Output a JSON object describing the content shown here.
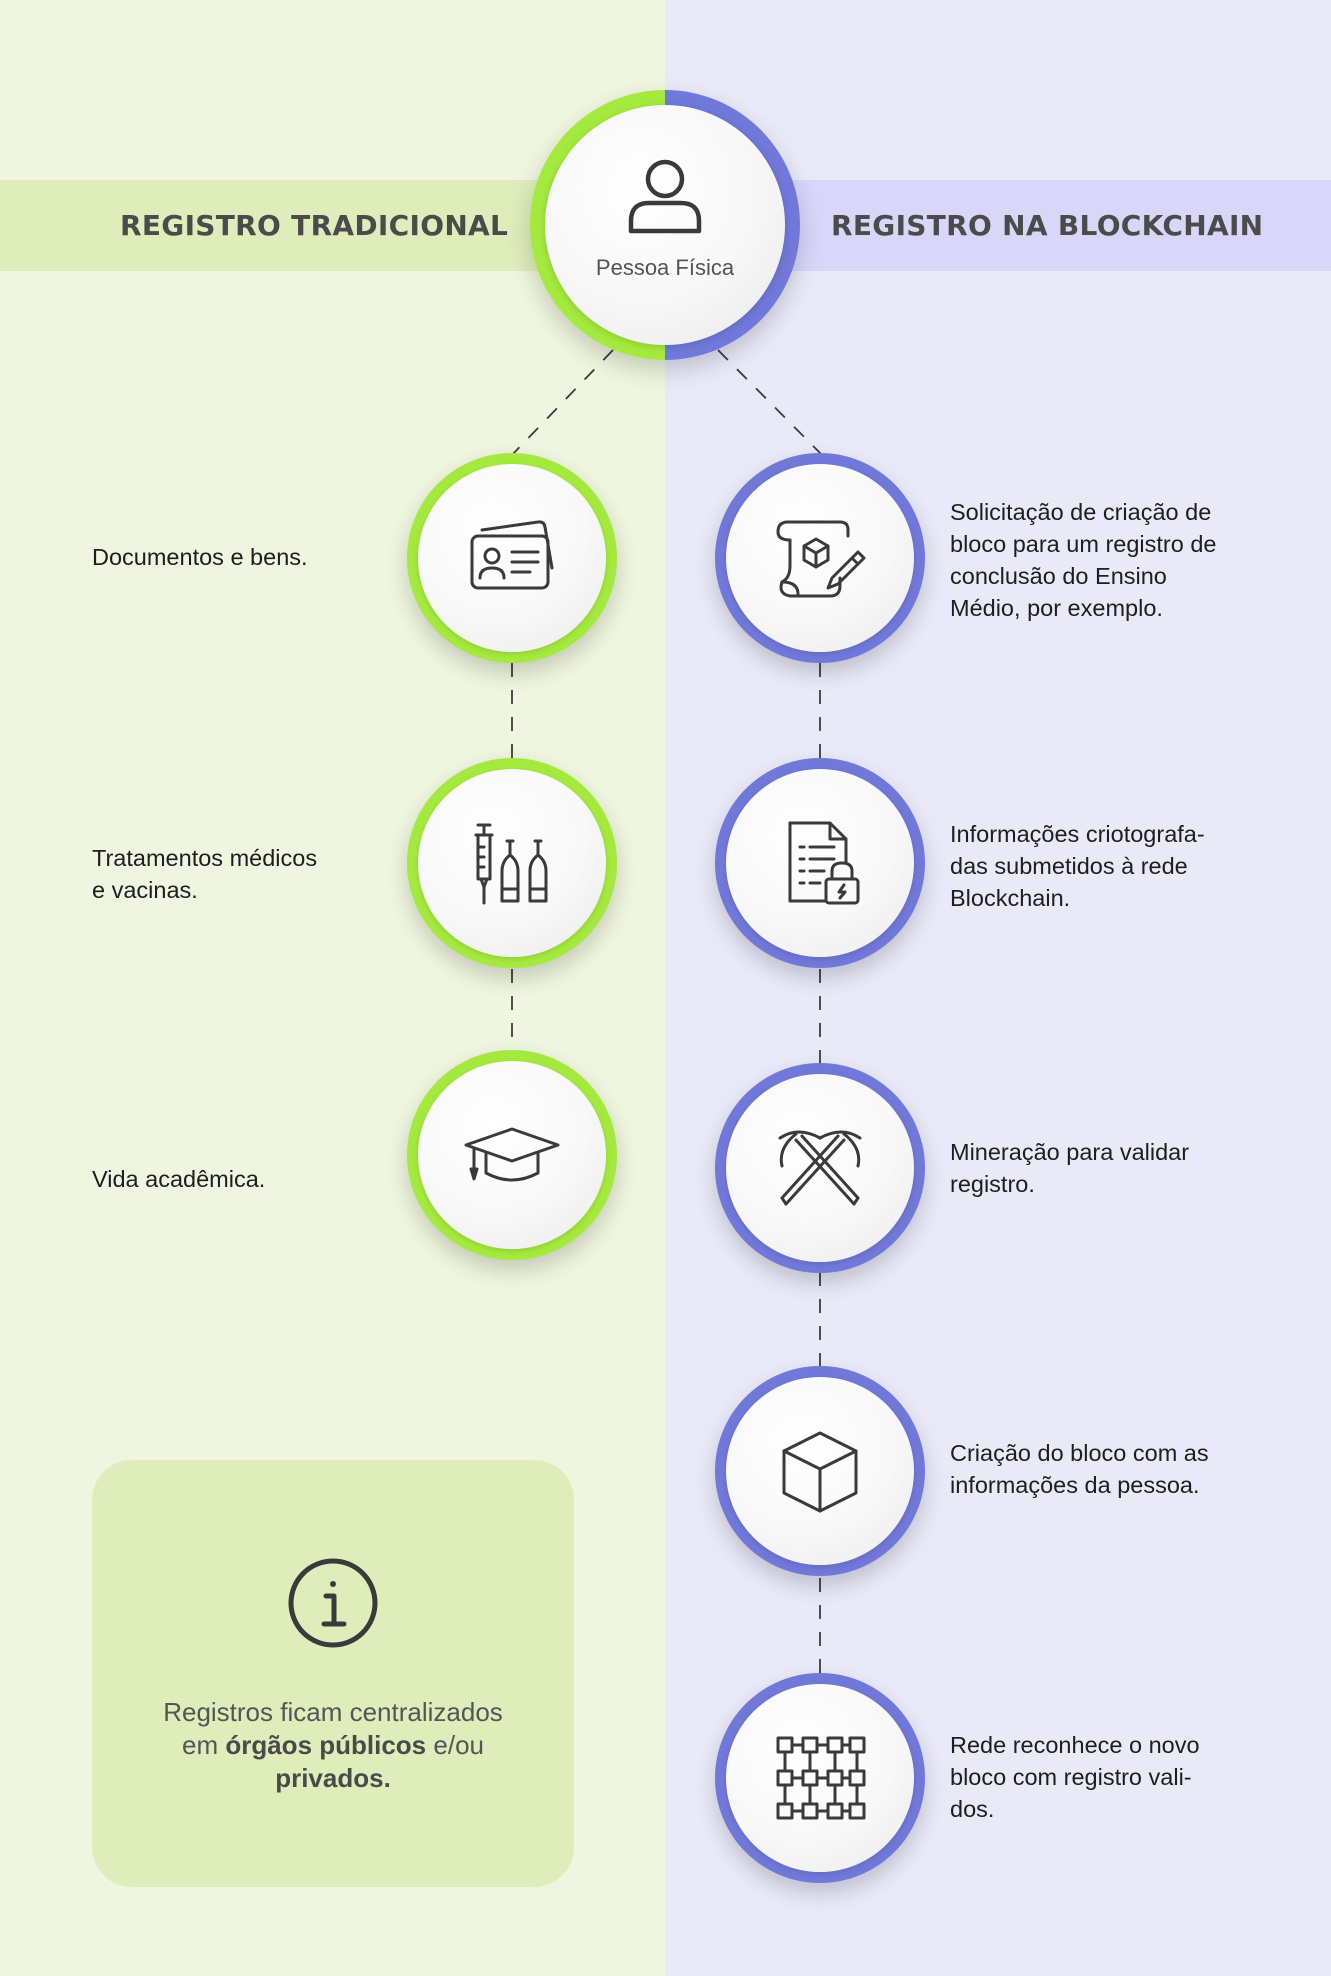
{
  "header": {
    "left_title": "REGISTRO TRADICIONAL",
    "right_title": "REGISTRO NA BLOCKCHAIN",
    "center_label": "Pessoa Física",
    "center_icon": "person-icon"
  },
  "colors": {
    "left_background": "#eff5de",
    "right_background": "#e9e9f8",
    "left_accent": "#a4ea3e",
    "right_accent": "#7079d9"
  },
  "traditional": [
    {
      "icon": "id-cards-icon",
      "text": "Documentos e bens."
    },
    {
      "icon": "syringe-vials-icon",
      "line1": "Tratamentos médicos",
      "line2": "e vacinas."
    },
    {
      "icon": "graduation-cap-icon",
      "text": "Vida acadêmica."
    }
  ],
  "blockchain": [
    {
      "icon": "scroll-pencil-icon",
      "text": "Solicitação de criação de bloco para um registro de conclusão do Ensino Médio, por exemplo."
    },
    {
      "icon": "locked-document-icon",
      "line1": "Informações criotografa-",
      "line2": "das submetidos à rede",
      "line3": "Blockchain."
    },
    {
      "icon": "pickaxes-icon",
      "text": "Mineração para validar registro."
    },
    {
      "icon": "cube-icon",
      "text": "Criação do bloco com as informações da pessoa."
    },
    {
      "icon": "block-network-icon",
      "line1": "Rede reconhece o novo",
      "line2": "bloco com registro vali-",
      "line3": "dos."
    }
  ],
  "info": {
    "icon": "info-icon",
    "text_part1": "Registros ficam centralizados",
    "text_part2": "em ",
    "text_bold1": "órgãos públicos",
    "text_part3": " e/ou",
    "text_bold2": "privados."
  }
}
